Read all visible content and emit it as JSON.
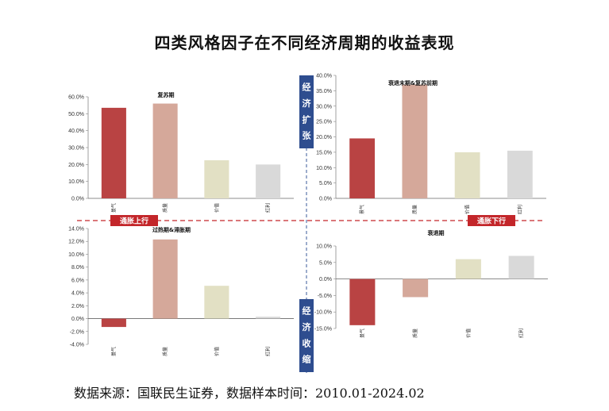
{
  "title": "四类风格因子在不同经济周期的收益表现",
  "source": "数据来源：国联民生证券，数据样本时间：2010.01-2024.02",
  "labels": {
    "up": "经济扩张",
    "down": "经济收缩",
    "left": "通胀上行",
    "right": "通胀下行"
  },
  "colors": {
    "景气": "#b94343",
    "质量": "#d5a89a",
    "价值": "#e2e0c4",
    "红利": "#d9d9d9",
    "banner": "#c3262a",
    "vbanner": "#2e4d8f"
  },
  "chart_data": [
    {
      "type": "bar",
      "title": "复苏期",
      "categories": [
        "景气",
        "质量",
        "价值",
        "红利"
      ],
      "values": [
        53.5,
        56.0,
        22.5,
        20.0
      ],
      "ylim": [
        0,
        60
      ],
      "yticks": [
        "0.0%",
        "10.0%",
        "20.0%",
        "30.0%",
        "40.0%",
        "50.0%",
        "60.0%"
      ]
    },
    {
      "type": "bar",
      "title": "衰退末期&复苏前期",
      "categories": [
        "景气",
        "质量",
        "价值",
        "红利"
      ],
      "values": [
        19.5,
        37.0,
        15.0,
        15.5
      ],
      "ylim": [
        0,
        40
      ],
      "yticks": [
        "0.0%",
        "5.0%",
        "10.0%",
        "15.0%",
        "20.0%",
        "25.0%",
        "30.0%",
        "35.0%",
        "40.0%"
      ]
    },
    {
      "type": "bar",
      "title": "过热期&滞胀期",
      "categories": [
        "景气",
        "质量",
        "价值",
        "红利"
      ],
      "values": [
        -1.3,
        12.3,
        5.1,
        0.3
      ],
      "ylim": [
        -4,
        14
      ],
      "yticks": [
        "-4.0%",
        "-2.0%",
        "0.0%",
        "2.0%",
        "4.0%",
        "6.0%",
        "8.0%",
        "10.0%",
        "12.0%",
        "14.0%"
      ]
    },
    {
      "type": "bar",
      "title": "衰退期",
      "categories": [
        "景气",
        "质量",
        "价值",
        "红利"
      ],
      "values": [
        -14.0,
        -5.5,
        6.0,
        7.0
      ],
      "ylim": [
        -15,
        10
      ],
      "yticks": [
        "-15.0%",
        "-10.0%",
        "-5.0%",
        "0.0%",
        "5.0%",
        "10.0%"
      ]
    }
  ]
}
